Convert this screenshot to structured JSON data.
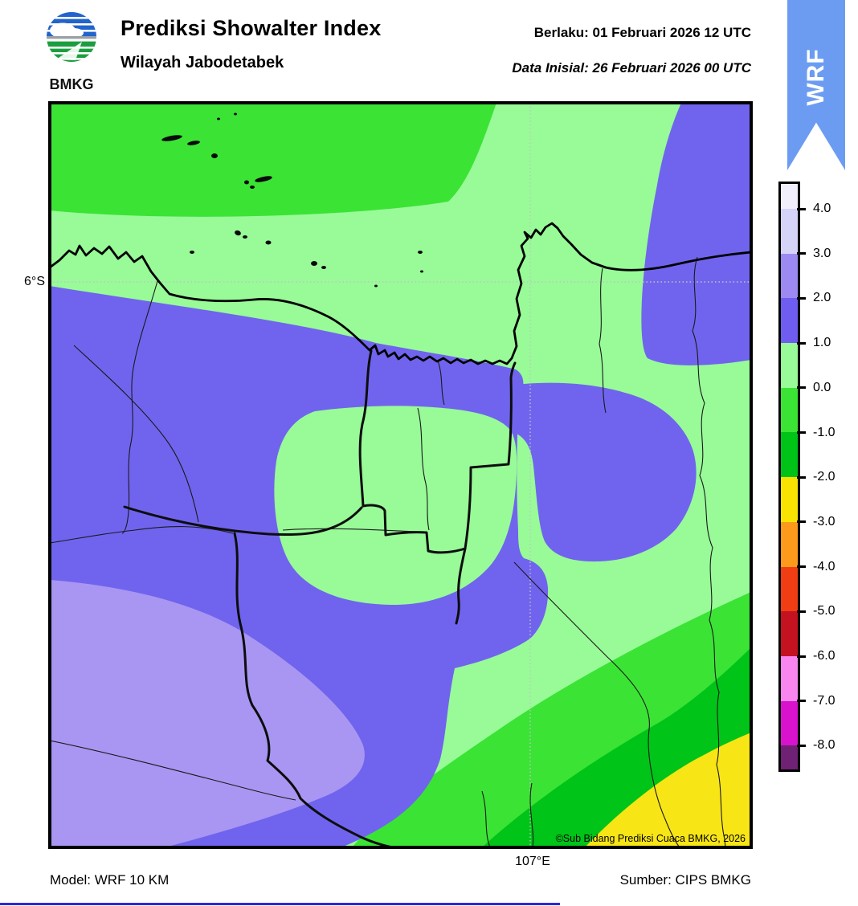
{
  "header": {
    "title": "Prediksi Showalter Index",
    "subtitle": "Wilayah Jabodetabek",
    "valid_line": "Berlaku:  01 Februari 2026 12 UTC",
    "init_line": "Data Inisial:  26 Februari 2026 00 UTC",
    "logo_text": "BMKG"
  },
  "ribbon": {
    "label": "WRF"
  },
  "map": {
    "lat_label": "6°S",
    "lon_label": "107°E",
    "copyright": "©Sub Bidang Prediksi Cuaca BMKG, 2026"
  },
  "footer": {
    "model": "Model: WRF 10 KM",
    "source": "Sumber: CIPS BMKG"
  },
  "colorbar": {
    "labels": [
      "4.0",
      "3.0",
      "2.0",
      "1.0",
      "0.0",
      "-1.0",
      "-2.0",
      "-3.0",
      "-4.0",
      "-5.0",
      "-6.0",
      "-7.0",
      "-8.0"
    ],
    "colors": [
      "#F1EFFB",
      "#D6D3F8",
      "#9C8AF2",
      "#6E5DF0",
      "#98FB98",
      "#3BE335",
      "#00C318",
      "#F8E400",
      "#FD9A1B",
      "#F13D13",
      "#C51220",
      "#F985EF",
      "#D912CE",
      "#6F2173"
    ]
  },
  "palette": {
    "light_green": "#98FB98",
    "bright_green": "#3BE335",
    "dark_green": "#00C418",
    "blue": "#7064EE",
    "light_purple": "#A896F2",
    "yellow": "#F8E516",
    "ribbon_blue": "#6C9CF2"
  },
  "chart_data": {
    "type": "heatmap",
    "title": "Prediksi Showalter Index",
    "region": "Wilayah Jabodetabek",
    "valid_time": "01 Februari 2026 12 UTC",
    "init_time": "26 Februari 2026 00 UTC",
    "model": "WRF 10 KM",
    "source": "CIPS BMKG",
    "legend_position": "right",
    "colorbar_levels": [
      4.0,
      3.0,
      2.0,
      1.0,
      0.0,
      -1.0,
      -2.0,
      -3.0,
      -4.0,
      -5.0,
      -6.0,
      -7.0,
      -8.0
    ],
    "colorbar_colors": [
      "#F1EFFB",
      "#D6D3F8",
      "#9C8AF2",
      "#6E5DF0",
      "#98FB98",
      "#3BE335",
      "#00C318",
      "#F8E400",
      "#FD9A1B",
      "#F13D13",
      "#C51220",
      "#F985EF",
      "#D912CE",
      "#6F2173"
    ],
    "gridlines": {
      "lat": "6°S",
      "lon": "107°E"
    },
    "field_summary": [
      {
        "area": "north offshore (Java Sea, Kepulauan Seribu)",
        "showalter_index": "-1 to 0"
      },
      {
        "area": "coastal strip and central Jakarta pocket",
        "showalter_index": "0 to 1"
      },
      {
        "area": "broad inland belt west and around Jakarta",
        "showalter_index": "1 to 2"
      },
      {
        "area": "southwest corner",
        "showalter_index": "2 to 3"
      },
      {
        "area": "east-central lobe",
        "showalter_index": "1 to 2"
      },
      {
        "area": "southeast slope",
        "showalter_index": "-1 to 0"
      },
      {
        "area": "south-southeast band",
        "showalter_index": "-2 to -1"
      },
      {
        "area": "far southeast corner",
        "showalter_index": "-3 to -2"
      }
    ]
  }
}
